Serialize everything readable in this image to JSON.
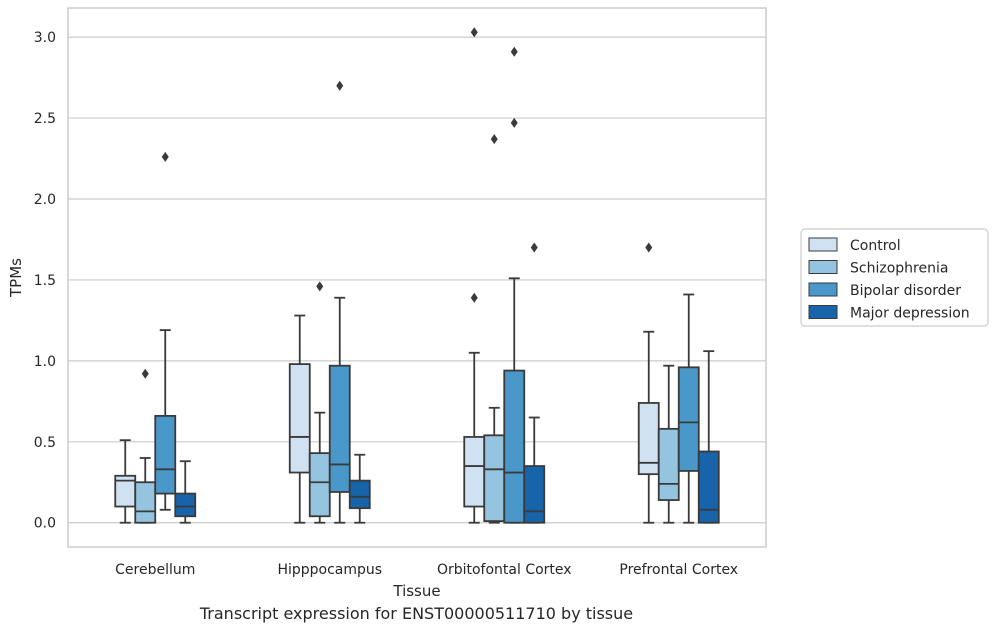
{
  "caption": "Transcript expression for ENST00000511710 by tissue",
  "chart_data": {
    "type": "box",
    "xlabel": "Tissue",
    "ylabel": "TPMs",
    "ylim": [
      -0.15,
      3.18
    ],
    "yticks": [
      0.0,
      0.5,
      1.0,
      1.5,
      2.0,
      2.5,
      3.0
    ],
    "ytick_labels": [
      "0.0",
      "0.5",
      "1.0",
      "1.5",
      "2.0",
      "2.5",
      "3.0"
    ],
    "grid": true,
    "legend_position": "right",
    "categories": [
      "Cerebellum",
      "Hipppocampus",
      "Orbitofontal Cortex",
      "Prefrontal Cortex"
    ],
    "series": [
      {
        "name": "Control",
        "color": "#d0e1f2",
        "boxes": [
          {
            "whislo": 0.0,
            "q1": 0.1,
            "median": 0.26,
            "q3": 0.29,
            "whishi": 0.51,
            "fliers": []
          },
          {
            "whislo": 0.0,
            "q1": 0.31,
            "median": 0.53,
            "q3": 0.98,
            "whishi": 1.28,
            "fliers": []
          },
          {
            "whislo": 0.0,
            "q1": 0.1,
            "median": 0.35,
            "q3": 0.53,
            "whishi": 1.05,
            "fliers": [
              1.39,
              3.03
            ]
          },
          {
            "whislo": 0.0,
            "q1": 0.3,
            "median": 0.37,
            "q3": 0.74,
            "whishi": 1.18,
            "fliers": [
              1.7
            ]
          }
        ]
      },
      {
        "name": "Schizophrenia",
        "color": "#94c4df",
        "boxes": [
          {
            "whislo": 0.0,
            "q1": 0.0,
            "median": 0.07,
            "q3": 0.25,
            "whishi": 0.4,
            "fliers": [
              0.92
            ]
          },
          {
            "whislo": 0.0,
            "q1": 0.04,
            "median": 0.25,
            "q3": 0.43,
            "whishi": 0.68,
            "fliers": [
              1.46
            ]
          },
          {
            "whislo": 0.0,
            "q1": 0.01,
            "median": 0.33,
            "q3": 0.54,
            "whishi": 0.71,
            "fliers": [
              2.37
            ]
          },
          {
            "whislo": 0.0,
            "q1": 0.14,
            "median": 0.24,
            "q3": 0.58,
            "whishi": 0.97,
            "fliers": []
          }
        ]
      },
      {
        "name": "Bipolar disorder",
        "color": "#4a98c9",
        "boxes": [
          {
            "whislo": 0.08,
            "q1": 0.18,
            "median": 0.33,
            "q3": 0.66,
            "whishi": 1.19,
            "fliers": [
              2.26
            ]
          },
          {
            "whislo": 0.0,
            "q1": 0.19,
            "median": 0.36,
            "q3": 0.97,
            "whishi": 1.39,
            "fliers": [
              2.7
            ]
          },
          {
            "whislo": 0.0,
            "q1": 0.0,
            "median": 0.31,
            "q3": 0.94,
            "whishi": 1.51,
            "fliers": [
              2.47,
              2.91
            ]
          },
          {
            "whislo": 0.0,
            "q1": 0.32,
            "median": 0.62,
            "q3": 0.96,
            "whishi": 1.41,
            "fliers": []
          }
        ]
      },
      {
        "name": "Major depression",
        "color": "#1764ab",
        "boxes": [
          {
            "whislo": 0.0,
            "q1": 0.04,
            "median": 0.1,
            "q3": 0.18,
            "whishi": 0.38,
            "fliers": []
          },
          {
            "whislo": 0.0,
            "q1": 0.09,
            "median": 0.16,
            "q3": 0.26,
            "whishi": 0.42,
            "fliers": []
          },
          {
            "whislo": 0.0,
            "q1": 0.0,
            "median": 0.07,
            "q3": 0.35,
            "whishi": 0.65,
            "fliers": [
              1.7
            ]
          },
          {
            "whislo": 0.0,
            "q1": 0.0,
            "median": 0.08,
            "q3": 0.44,
            "whishi": 1.06,
            "fliers": []
          }
        ]
      }
    ]
  }
}
